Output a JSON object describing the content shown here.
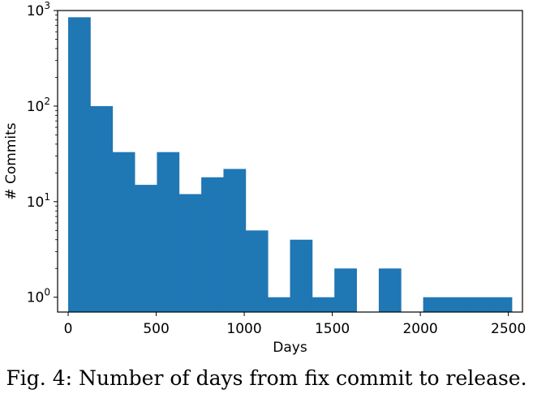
{
  "caption": "Fig. 4: Number of days from fix commit to release.",
  "chart_data": {
    "type": "bar",
    "title": "",
    "xlabel": "Days",
    "ylabel": "# Commits",
    "yscale": "log",
    "ylim": [
      0.7,
      1000
    ],
    "xlim": [
      -60,
      2580
    ],
    "x_ticks": [
      0,
      500,
      1000,
      1500,
      2000,
      2500
    ],
    "y_ticks": [
      {
        "value": 1,
        "base": "10",
        "exp": "0"
      },
      {
        "value": 10,
        "base": "10",
        "exp": "1"
      },
      {
        "value": 100,
        "base": "10",
        "exp": "2"
      },
      {
        "value": 1000,
        "base": "10",
        "exp": "3"
      }
    ],
    "color": "#1f77b4",
    "bins": [
      {
        "x0": 0,
        "x1": 126,
        "count": 850
      },
      {
        "x0": 126,
        "x1": 252,
        "count": 100
      },
      {
        "x0": 252,
        "x1": 378,
        "count": 33
      },
      {
        "x0": 378,
        "x1": 504,
        "count": 15
      },
      {
        "x0": 504,
        "x1": 630,
        "count": 33
      },
      {
        "x0": 630,
        "x1": 756,
        "count": 12
      },
      {
        "x0": 756,
        "x1": 882,
        "count": 18
      },
      {
        "x0": 882,
        "x1": 1008,
        "count": 22
      },
      {
        "x0": 1008,
        "x1": 1134,
        "count": 5
      },
      {
        "x0": 1134,
        "x1": 1260,
        "count": 1
      },
      {
        "x0": 1260,
        "x1": 1386,
        "count": 4
      },
      {
        "x0": 1386,
        "x1": 1512,
        "count": 1
      },
      {
        "x0": 1512,
        "x1": 1638,
        "count": 2
      },
      {
        "x0": 1638,
        "x1": 1764,
        "count": 0
      },
      {
        "x0": 1764,
        "x1": 1890,
        "count": 2
      },
      {
        "x0": 1890,
        "x1": 2016,
        "count": 0
      },
      {
        "x0": 2016,
        "x1": 2142,
        "count": 1
      },
      {
        "x0": 2142,
        "x1": 2268,
        "count": 1
      },
      {
        "x0": 2268,
        "x1": 2394,
        "count": 1
      },
      {
        "x0": 2394,
        "x1": 2520,
        "count": 1
      }
    ]
  }
}
